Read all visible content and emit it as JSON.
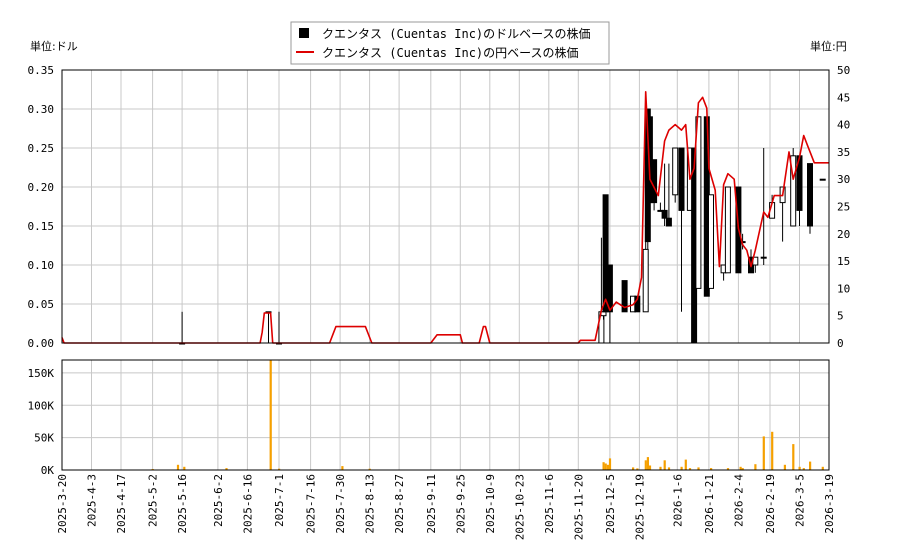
{
  "legend": {
    "usd_label": "クエンタス (Cuentas Inc)のドルベースの株価",
    "jpy_label": "クエンタス (Cuentas Inc)の円ベースの株価",
    "placement": "top-center"
  },
  "units": {
    "left": "単位:ドル",
    "right": "単位:円"
  },
  "colors": {
    "candle": "#000000",
    "yen_line": "#dd0000",
    "volume": "#f5a000",
    "grid": "#c8c8c8"
  },
  "chart_data": [
    {
      "type": "candlestick",
      "title": "",
      "dates": [
        "2025-3-20",
        "2025-4-3",
        "2025-4-17",
        "2025-5-2",
        "2025-5-16",
        "2025-6-2",
        "2025-6-16",
        "2025-7-1",
        "2025-7-16",
        "2025-7-30",
        "2025-8-13",
        "2025-8-27",
        "2025-9-11",
        "2025-9-25",
        "2025-10-9",
        "2025-10-23",
        "2025-11-6",
        "2025-11-20",
        "2025-12-5",
        "2025-12-19",
        "2026-1-6",
        "2026-1-21",
        "2026-2-4",
        "2026-2-19",
        "2026-3-5",
        "2026-3-19"
      ],
      "x_tick_labels": [
        "2025-3-20",
        "2025-4-3",
        "2025-4-17",
        "2025-5-2",
        "2025-5-16",
        "2025-6-2",
        "2025-6-16",
        "2025-7-1",
        "2025-7-16",
        "2025-7-30",
        "2025-8-13",
        "2025-8-27",
        "2025-9-11",
        "2025-9-25",
        "2025-10-9",
        "2025-10-23",
        "2025-11-6",
        "2025-11-20",
        "2025-12-5",
        "2025-12-19",
        "2026-1-6",
        "2026-1-21",
        "2026-2-4",
        "2026-2-19",
        "2026-3-5",
        "2026-3-19"
      ],
      "y_left": {
        "label": "単位:ドル",
        "ticks": [
          0.0,
          0.05,
          0.1,
          0.15,
          0.2,
          0.25,
          0.3,
          0.35
        ],
        "tick_labels": [
          "0.00",
          "0.05",
          "0.10",
          "0.15",
          "0.20",
          "0.25",
          "0.30",
          "0.35"
        ],
        "range": [
          0,
          0.35
        ]
      },
      "y_right": {
        "label": "単位:円",
        "ticks": [
          0,
          5,
          10,
          15,
          20,
          25,
          30,
          35,
          40,
          45,
          50
        ],
        "tick_labels": [
          "0",
          "5",
          "10",
          "15",
          "20",
          "25",
          "30",
          "35",
          "40",
          "45",
          "50"
        ],
        "range": [
          0,
          50
        ]
      },
      "grid": true,
      "candles_usd": [
        {
          "d": "2025-5-16",
          "o": 0.0,
          "h": 0.04,
          "l": 0.0,
          "c": 0.0
        },
        {
          "d": "2025-6-26",
          "o": 0.04,
          "h": 0.04,
          "l": 0.0,
          "c": 0.04
        },
        {
          "d": "2025-7-1",
          "o": 0.0,
          "h": 0.04,
          "l": 0.0,
          "c": 0.0
        },
        {
          "d": "2025-12-1",
          "o": 0.0,
          "h": 0.135,
          "l": 0.0,
          "c": 0.04
        },
        {
          "d": "2025-12-2",
          "o": 0.035,
          "h": 0.05,
          "l": 0.03,
          "c": 0.04
        },
        {
          "d": "2025-12-3",
          "o": 0.19,
          "h": 0.19,
          "l": 0.04,
          "c": 0.04
        },
        {
          "d": "2025-12-4",
          "o": 0.1,
          "h": 0.1,
          "l": 0.04,
          "c": 0.045
        },
        {
          "d": "2025-12-5",
          "o": 0.1,
          "h": 0.1,
          "l": 0.0,
          "c": 0.04
        },
        {
          "d": "2025-12-12",
          "o": 0.08,
          "h": 0.08,
          "l": 0.04,
          "c": 0.04
        },
        {
          "d": "2025-12-16",
          "o": 0.04,
          "h": 0.06,
          "l": 0.04,
          "c": 0.06
        },
        {
          "d": "2025-12-18",
          "o": 0.06,
          "h": 0.06,
          "l": 0.04,
          "c": 0.04
        },
        {
          "d": "2025-12-22",
          "o": 0.04,
          "h": 0.3,
          "l": 0.04,
          "c": 0.12
        },
        {
          "d": "2025-12-23",
          "o": 0.3,
          "h": 0.3,
          "l": 0.12,
          "c": 0.13
        },
        {
          "d": "2025-12-24",
          "o": 0.29,
          "h": 0.29,
          "l": 0.18,
          "c": 0.18
        },
        {
          "d": "2025-12-26",
          "o": 0.235,
          "h": 0.235,
          "l": 0.17,
          "c": 0.18
        },
        {
          "d": "2025-12-29",
          "o": 0.17,
          "h": 0.18,
          "l": 0.17,
          "c": 0.17
        },
        {
          "d": "2025-12-31",
          "o": 0.17,
          "h": 0.23,
          "l": 0.15,
          "c": 0.16
        },
        {
          "d": "2026-1-2",
          "o": 0.16,
          "h": 0.23,
          "l": 0.15,
          "c": 0.15
        },
        {
          "d": "2026-1-5",
          "o": 0.19,
          "h": 0.25,
          "l": 0.18,
          "c": 0.25
        },
        {
          "d": "2026-1-8",
          "o": 0.25,
          "h": 0.25,
          "l": 0.04,
          "c": 0.17
        },
        {
          "d": "2026-1-12",
          "o": 0.17,
          "h": 0.25,
          "l": 0.17,
          "c": 0.25
        },
        {
          "d": "2026-1-14",
          "o": 0.25,
          "h": 0.25,
          "l": 0.0,
          "c": 0.0
        },
        {
          "d": "2026-1-16",
          "o": 0.07,
          "h": 0.29,
          "l": 0.07,
          "c": 0.29
        },
        {
          "d": "2026-1-20",
          "o": 0.29,
          "h": 0.29,
          "l": 0.06,
          "c": 0.06
        },
        {
          "d": "2026-1-22",
          "o": 0.07,
          "h": 0.19,
          "l": 0.07,
          "c": 0.19
        },
        {
          "d": "2026-1-28",
          "o": 0.09,
          "h": 0.1,
          "l": 0.08,
          "c": 0.1
        },
        {
          "d": "2026-1-30",
          "o": 0.09,
          "h": 0.2,
          "l": 0.09,
          "c": 0.2
        },
        {
          "d": "2026-2-4",
          "o": 0.2,
          "h": 0.2,
          "l": 0.09,
          "c": 0.09
        },
        {
          "d": "2026-2-6",
          "o": 0.13,
          "h": 0.14,
          "l": 0.12,
          "c": 0.13
        },
        {
          "d": "2026-2-10",
          "o": 0.11,
          "h": 0.12,
          "l": 0.09,
          "c": 0.09
        },
        {
          "d": "2026-2-12",
          "o": 0.1,
          "h": 0.11,
          "l": 0.09,
          "c": 0.11
        },
        {
          "d": "2026-2-16",
          "o": 0.11,
          "h": 0.25,
          "l": 0.1,
          "c": 0.11
        },
        {
          "d": "2026-2-20",
          "o": 0.16,
          "h": 0.19,
          "l": 0.16,
          "c": 0.18
        },
        {
          "d": "2026-2-25",
          "o": 0.18,
          "h": 0.2,
          "l": 0.13,
          "c": 0.2
        },
        {
          "d": "2026-3-2",
          "o": 0.15,
          "h": 0.25,
          "l": 0.15,
          "c": 0.24
        },
        {
          "d": "2026-3-5",
          "o": 0.24,
          "h": 0.24,
          "l": 0.15,
          "c": 0.17
        },
        {
          "d": "2026-3-10",
          "o": 0.23,
          "h": 0.23,
          "l": 0.14,
          "c": 0.15
        },
        {
          "d": "2026-3-16",
          "o": 0.21,
          "h": 0.21,
          "l": 0.21,
          "c": 0.21
        }
      ],
      "series": [
        {
          "name": "クエンタス (Cuentas Inc)の円ベースの株価",
          "axis": "right",
          "points": [
            [
              "2025-3-20",
              1
            ],
            [
              "2025-3-21",
              0
            ],
            [
              "2025-6-22",
              0
            ],
            [
              "2025-6-23",
              2
            ],
            [
              "2025-6-24",
              5.5
            ],
            [
              "2025-6-27",
              5.5
            ],
            [
              "2025-6-28",
              0
            ],
            [
              "2025-7-20",
              0
            ],
            [
              "2025-7-25",
              0
            ],
            [
              "2025-7-27",
              2
            ],
            [
              "2025-7-28",
              3
            ],
            [
              "2025-8-11",
              3
            ],
            [
              "2025-8-14",
              0
            ],
            [
              "2025-9-11",
              0
            ],
            [
              "2025-9-13",
              1
            ],
            [
              "2025-9-14",
              1.5
            ],
            [
              "2025-9-25",
              1.5
            ],
            [
              "2025-9-26",
              0
            ],
            [
              "2025-10-4",
              0
            ],
            [
              "2025-10-6",
              3
            ],
            [
              "2025-10-7",
              3
            ],
            [
              "2025-10-9",
              0
            ],
            [
              "2025-11-20",
              0
            ],
            [
              "2025-11-21",
              0.5
            ],
            [
              "2025-11-28",
              0.5
            ],
            [
              "2025-12-1",
              6
            ],
            [
              "2025-12-3",
              8
            ],
            [
              "2025-12-5",
              6
            ],
            [
              "2025-12-8",
              7.5
            ],
            [
              "2025-12-12",
              6.5
            ],
            [
              "2025-12-16",
              7
            ],
            [
              "2025-12-18",
              8
            ],
            [
              "2025-12-20",
              12
            ],
            [
              "2025-12-22",
              46
            ],
            [
              "2025-12-24",
              30
            ],
            [
              "2025-12-28",
              27
            ],
            [
              "2025-12-31",
              37
            ],
            [
              "2026-1-2",
              39
            ],
            [
              "2026-1-5",
              40
            ],
            [
              "2026-1-8",
              39
            ],
            [
              "2026-1-10",
              40
            ],
            [
              "2026-1-12",
              30
            ],
            [
              "2026-1-14",
              32
            ],
            [
              "2026-1-16",
              44
            ],
            [
              "2026-1-18",
              45
            ],
            [
              "2026-1-20",
              43
            ],
            [
              "2026-1-21",
              32
            ],
            [
              "2026-1-24",
              28
            ],
            [
              "2026-1-26",
              14
            ],
            [
              "2026-1-28",
              29
            ],
            [
              "2026-1-30",
              31
            ],
            [
              "2026-2-2",
              30
            ],
            [
              "2026-2-4",
              21
            ],
            [
              "2026-2-6",
              18
            ],
            [
              "2026-2-8",
              17
            ],
            [
              "2026-2-10",
              14
            ],
            [
              "2026-2-12",
              17
            ],
            [
              "2026-2-16",
              24
            ],
            [
              "2026-2-18",
              23
            ],
            [
              "2026-2-21",
              27
            ],
            [
              "2026-2-25",
              27
            ],
            [
              "2026-2-28",
              35
            ],
            [
              "2026-3-2",
              30
            ],
            [
              "2026-3-5",
              34
            ],
            [
              "2026-3-7",
              38
            ],
            [
              "2026-3-9",
              36
            ],
            [
              "2026-3-12",
              33
            ],
            [
              "2026-3-16",
              33
            ],
            [
              "2026-3-19",
              33
            ]
          ]
        }
      ]
    },
    {
      "type": "bar",
      "title": "",
      "y_ticks": [
        0,
        50000,
        100000,
        150000
      ],
      "y_tick_labels": [
        "0K",
        "50K",
        "100K",
        "150K"
      ],
      "y_range": [
        0,
        170000
      ],
      "grid": true,
      "volume": [
        [
          "2025-5-2",
          1500
        ],
        [
          "2025-5-14",
          8000
        ],
        [
          "2025-5-17",
          5000
        ],
        [
          "2025-6-6",
          3000
        ],
        [
          "2025-6-27",
          170000
        ],
        [
          "2025-7-1",
          2000
        ],
        [
          "2025-7-31",
          6000
        ],
        [
          "2025-8-13",
          2000
        ],
        [
          "2025-12-2",
          12000
        ],
        [
          "2025-12-3",
          10000
        ],
        [
          "2025-12-4",
          8000
        ],
        [
          "2025-12-5",
          18000
        ],
        [
          "2025-12-16",
          4000
        ],
        [
          "2025-12-18",
          2500
        ],
        [
          "2025-12-22",
          15000
        ],
        [
          "2025-12-23",
          20000
        ],
        [
          "2025-12-24",
          7000
        ],
        [
          "2025-12-29",
          5000
        ],
        [
          "2025-12-31",
          15000
        ],
        [
          "2026-1-2",
          4000
        ],
        [
          "2026-1-8",
          5000
        ],
        [
          "2026-1-10",
          16000
        ],
        [
          "2026-1-12",
          3000
        ],
        [
          "2026-1-16",
          4000
        ],
        [
          "2026-1-22",
          3000
        ],
        [
          "2026-1-30",
          3000
        ],
        [
          "2026-2-5",
          5000
        ],
        [
          "2026-2-6",
          3000
        ],
        [
          "2026-2-12",
          9000
        ],
        [
          "2026-2-16",
          52000
        ],
        [
          "2026-2-20",
          59000
        ],
        [
          "2026-2-26",
          8000
        ],
        [
          "2026-3-2",
          40000
        ],
        [
          "2026-3-5",
          5000
        ],
        [
          "2026-3-7",
          3000
        ],
        [
          "2026-3-10",
          13000
        ],
        [
          "2026-3-16",
          5000
        ]
      ]
    }
  ]
}
